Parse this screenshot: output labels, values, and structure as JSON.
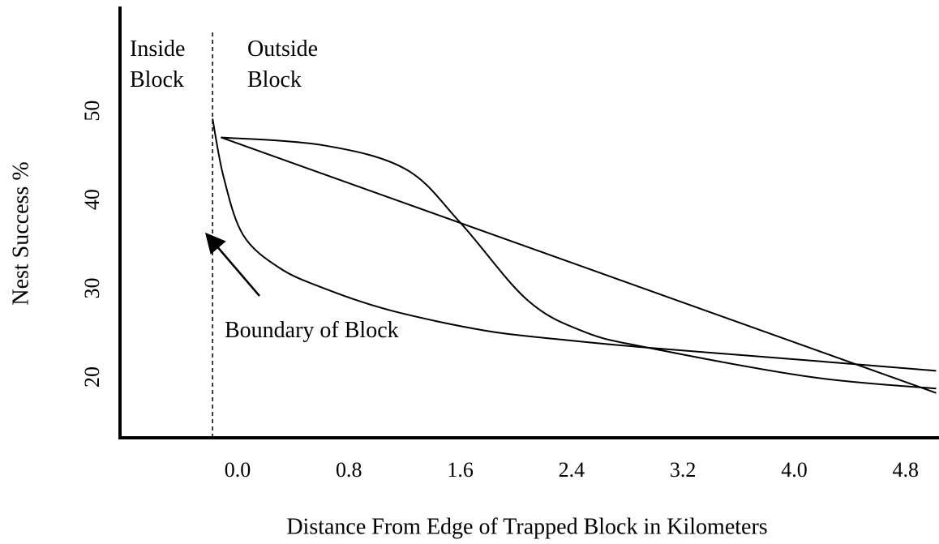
{
  "chart_data": {
    "type": "line",
    "xlabel": "Distance From Edge of Trapped Block in Kilometers",
    "ylabel": "Nest Success %",
    "xlim": [
      -0.845,
      5.023
    ],
    "ylim": [
      13.15,
      61.75
    ],
    "xticks": [
      {
        "value": 0,
        "label": "0.0"
      },
      0.8,
      1.6,
      2.4,
      3.2,
      {
        "value": 4,
        "label": "4.0"
      },
      4.8
    ],
    "yticks": [
      20,
      30,
      40,
      50
    ],
    "grid": false,
    "boundary_x": -0.18,
    "annotations": [
      "Inside Block",
      "Outside Block",
      "Boundary of Block"
    ],
    "series": [
      {
        "color": "#000000",
        "x": [
          -0.18,
          -0.1,
          0.04,
          0.3,
          0.62,
          1.1,
          1.79,
          2.4,
          2.95,
          4.0,
          5.02
        ],
        "values": [
          49.1,
          42.5,
          36.0,
          32.3,
          30.0,
          27.5,
          25.2,
          24.1,
          23.3,
          22.0,
          20.7
        ]
      },
      {
        "color": "#000000",
        "x": [
          -0.12,
          5.02
        ],
        "values": [
          47.0,
          18.2
        ]
      },
      {
        "color": "#000000",
        "x": [
          -0.12,
          0.62,
          1.21,
          1.6,
          2.08,
          2.49,
          2.95,
          4.12,
          5.02
        ],
        "values": [
          47.0,
          46.1,
          43.4,
          37.4,
          28.7,
          25.1,
          23.3,
          20.0,
          18.7
        ]
      }
    ]
  }
}
